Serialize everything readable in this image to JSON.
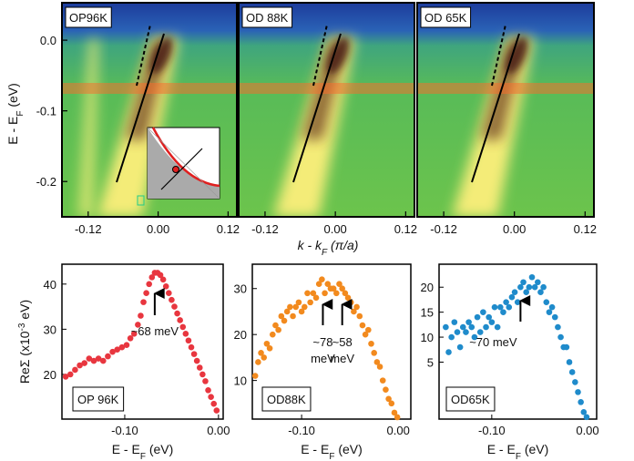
{
  "chart_data": [
    {
      "type": "heatmap",
      "y_label": [
        "E - E",
        "F",
        " (eV)"
      ],
      "x_label": [
        "k - k",
        "F",
        " (π/a)"
      ],
      "ylim": [
        -0.25,
        0.053
      ],
      "yticks": [
        {
          "value": 0,
          "label": "0.0"
        },
        -0.1,
        -0.2
      ],
      "xlim": [
        -0.165,
        0.135
      ],
      "xticks": [
        -0.12,
        {
          "value": 0,
          "label": "0.00"
        },
        0.12
      ],
      "panels": [
        "OP96K",
        "OD 88K",
        "OD 65K"
      ]
    },
    {
      "type": "scatter",
      "label": "OP 96K",
      "color": "#e8363f",
      "y_label": [
        "ReΣ (x10",
        "-3",
        " eV)"
      ],
      "x_label": [
        "E - E",
        "F",
        " (eV)"
      ],
      "xlim": [
        -0.167,
        0.005
      ],
      "ylim": [
        10.1,
        44.4
      ],
      "xticks": [
        {
          "value": -0.1,
          "label": "-0.10"
        },
        {
          "value": 0,
          "label": "0.00"
        }
      ],
      "yticks": [
        20,
        30,
        40
      ],
      "x": [
        -0.163,
        -0.158,
        -0.153,
        -0.148,
        -0.143,
        -0.138,
        -0.133,
        -0.128,
        -0.123,
        -0.118,
        -0.113,
        -0.108,
        -0.103,
        -0.098,
        -0.094,
        -0.09,
        -0.086,
        -0.083,
        -0.08,
        -0.077,
        -0.074,
        -0.071,
        -0.068,
        -0.065,
        -0.062,
        -0.059,
        -0.056,
        -0.053,
        -0.05,
        -0.047,
        -0.044,
        -0.041,
        -0.038,
        -0.035,
        -0.032,
        -0.029,
        -0.026,
        -0.023,
        -0.02,
        -0.017,
        -0.014,
        -0.011,
        -0.008,
        -0.005,
        -0.002
      ],
      "y": [
        19.5,
        20,
        21,
        22,
        22.5,
        23.5,
        23,
        23.5,
        23,
        24,
        25,
        25.5,
        26,
        26.5,
        28,
        29,
        31,
        33,
        36,
        38,
        40,
        41.5,
        42.5,
        42.5,
        42,
        41,
        39.5,
        38,
        36.5,
        35,
        33.5,
        32,
        30.5,
        29,
        27.5,
        26,
        24.5,
        23,
        21.5,
        20,
        18.5,
        16.5,
        15,
        13.5,
        12
      ],
      "annotations": [
        {
          "x": -0.068,
          "text": [
            "~68 meV"
          ]
        }
      ]
    },
    {
      "type": "scatter",
      "label": "OD88K",
      "color": "#f28a1e",
      "x_label": [
        "E - E",
        "F",
        " (eV)"
      ],
      "xlim": [
        -0.151,
        0.013
      ],
      "ylim": [
        1.6,
        35.3
      ],
      "xticks": [
        {
          "value": -0.1,
          "label": "-0.10"
        },
        {
          "value": 0,
          "label": "0.00"
        }
      ],
      "yticks": [
        10,
        20,
        30
      ],
      "x": [
        -0.148,
        -0.145,
        -0.142,
        -0.139,
        -0.136,
        -0.133,
        -0.13,
        -0.127,
        -0.124,
        -0.121,
        -0.118,
        -0.115,
        -0.112,
        -0.109,
        -0.106,
        -0.103,
        -0.1,
        -0.097,
        -0.094,
        -0.091,
        -0.088,
        -0.085,
        -0.082,
        -0.079,
        -0.076,
        -0.073,
        -0.07,
        -0.067,
        -0.064,
        -0.061,
        -0.058,
        -0.055,
        -0.052,
        -0.049,
        -0.046,
        -0.043,
        -0.04,
        -0.037,
        -0.034,
        -0.031,
        -0.028,
        -0.025,
        -0.022,
        -0.019,
        -0.016,
        -0.013,
        -0.01,
        -0.007,
        -0.004,
        -0.001
      ],
      "y": [
        11,
        14,
        16,
        15,
        18,
        17,
        20,
        22,
        21,
        24,
        23,
        25,
        26,
        24,
        26,
        27,
        25,
        26,
        29,
        27,
        29,
        28,
        31,
        32,
        29,
        31,
        30,
        30,
        29,
        31,
        30,
        29,
        28,
        27,
        25,
        26,
        24,
        22,
        20,
        21,
        18,
        16,
        14,
        13,
        10,
        8,
        6,
        5,
        3,
        2
      ],
      "annotations": [
        {
          "x": -0.078,
          "text": [
            "~78",
            "meV"
          ]
        },
        {
          "x": -0.058,
          "text": [
            "~58",
            "meV"
          ]
        }
      ]
    },
    {
      "type": "scatter",
      "label": "OD65K",
      "color": "#1f8bcb",
      "x_label": [
        "E - E",
        "F",
        " (eV)"
      ],
      "xlim": [
        -0.155,
        0.0095
      ],
      "ylim": [
        -6.4,
        24.6
      ],
      "xticks": [
        {
          "value": -0.1,
          "label": "-0.10"
        },
        {
          "value": 0,
          "label": "0.00"
        }
      ],
      "yticks": [
        5,
        10,
        15,
        20
      ],
      "x": [
        -0.148,
        -0.145,
        -0.142,
        -0.139,
        -0.136,
        -0.133,
        -0.13,
        -0.127,
        -0.124,
        -0.121,
        -0.118,
        -0.115,
        -0.112,
        -0.109,
        -0.106,
        -0.103,
        -0.1,
        -0.097,
        -0.094,
        -0.091,
        -0.088,
        -0.085,
        -0.082,
        -0.079,
        -0.076,
        -0.073,
        -0.07,
        -0.067,
        -0.064,
        -0.061,
        -0.058,
        -0.055,
        -0.052,
        -0.049,
        -0.046,
        -0.043,
        -0.04,
        -0.037,
        -0.034,
        -0.031,
        -0.028,
        -0.025,
        -0.022,
        -0.019,
        -0.016,
        -0.013,
        -0.01,
        -0.007,
        -0.004,
        -0.001
      ],
      "y": [
        12,
        7,
        10,
        13,
        11,
        8,
        12,
        11,
        13,
        12,
        10,
        14,
        11,
        15,
        12,
        14,
        13,
        16,
        12,
        16,
        15,
        17,
        16,
        18,
        19,
        17,
        20,
        21,
        19,
        20,
        22,
        20,
        21,
        19,
        20,
        17,
        15,
        16,
        14,
        12,
        10,
        8,
        8,
        5,
        3,
        1,
        -1,
        -3,
        -5,
        -6
      ],
      "annotations": [
        {
          "x": -0.07,
          "text": [
            "~70 meV"
          ]
        }
      ]
    }
  ]
}
